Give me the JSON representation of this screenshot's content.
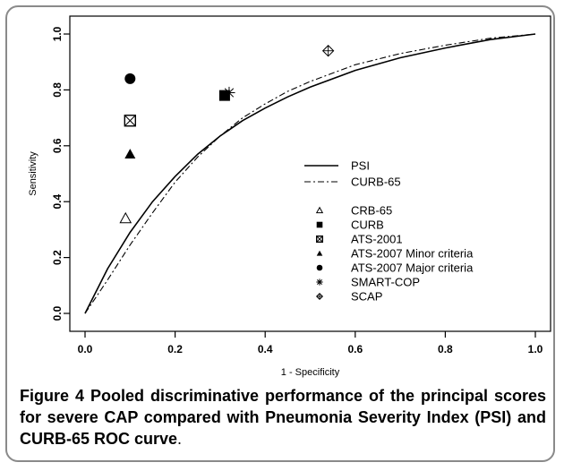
{
  "chart_data": {
    "type": "scatter",
    "xlabel": "1 - Specificity",
    "ylabel": "Sensitivity",
    "xlim": [
      0.0,
      1.0
    ],
    "ylim": [
      0.0,
      1.0
    ],
    "x_ticks": [
      "0.0",
      "0.2",
      "0.4",
      "0.6",
      "0.8",
      "1.0"
    ],
    "y_ticks": [
      "0.0",
      "0.2",
      "0.4",
      "0.6",
      "0.8",
      "1.0"
    ],
    "x_tick_values": [
      0.0,
      0.2,
      0.4,
      0.6,
      0.8,
      1.0
    ],
    "y_tick_values": [
      0.0,
      0.2,
      0.4,
      0.6,
      0.8,
      1.0
    ],
    "grid": false,
    "legend_position": "center-right",
    "curves": [
      {
        "name": "PSI",
        "style": "solid",
        "x": [
          0.0,
          0.05,
          0.1,
          0.15,
          0.2,
          0.25,
          0.3,
          0.35,
          0.4,
          0.45,
          0.5,
          0.6,
          0.7,
          0.8,
          0.9,
          1.0
        ],
        "y": [
          0.0,
          0.16,
          0.29,
          0.4,
          0.49,
          0.57,
          0.635,
          0.69,
          0.735,
          0.775,
          0.81,
          0.87,
          0.915,
          0.95,
          0.98,
          1.0
        ]
      },
      {
        "name": "CURB-65",
        "style": "dashdot",
        "x": [
          0.0,
          0.05,
          0.1,
          0.15,
          0.2,
          0.25,
          0.3,
          0.35,
          0.4,
          0.45,
          0.5,
          0.6,
          0.7,
          0.8,
          0.9,
          1.0
        ],
        "y": [
          0.0,
          0.12,
          0.245,
          0.36,
          0.47,
          0.56,
          0.635,
          0.7,
          0.75,
          0.795,
          0.83,
          0.89,
          0.93,
          0.96,
          0.985,
          1.0
        ]
      }
    ],
    "points": [
      {
        "name": "CRB-65",
        "marker": "triangle-open",
        "x": 0.09,
        "y": 0.34
      },
      {
        "name": "CURB",
        "marker": "square-filled",
        "x": 0.31,
        "y": 0.78
      },
      {
        "name": "ATS-2001",
        "marker": "square-x",
        "x": 0.1,
        "y": 0.69
      },
      {
        "name": "ATS-2007 Minor criteria",
        "marker": "triangle-filled",
        "x": 0.1,
        "y": 0.57
      },
      {
        "name": "ATS-2007 Major criteria",
        "marker": "circle-filled",
        "x": 0.1,
        "y": 0.84
      },
      {
        "name": "SMART-COP",
        "marker": "asterisk",
        "x": 0.32,
        "y": 0.79
      },
      {
        "name": "SCAP",
        "marker": "diamond-cross",
        "x": 0.54,
        "y": 0.94
      }
    ]
  },
  "caption": {
    "lead": "Figure 4",
    "rest": "Pooled discriminative performance of the principal scores for severe CAP compared with Pneumonia Severity Index (PSI) and CURB-65 ROC curve",
    "tail": "."
  }
}
